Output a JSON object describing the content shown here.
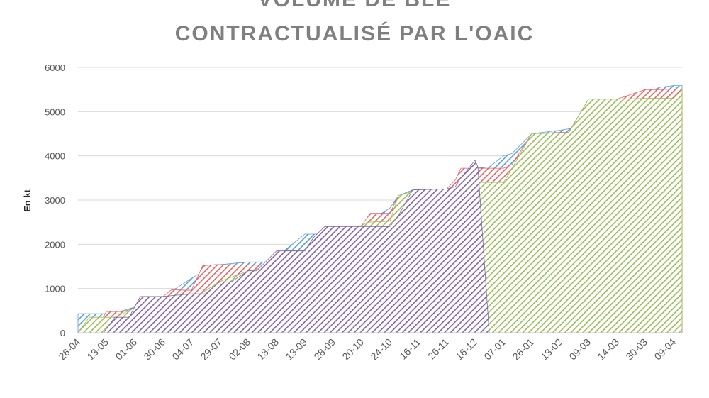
{
  "chart_data": {
    "type": "area",
    "title_line1": "VOLUME DE BLÉ",
    "title_line2": "CONTRACTUALISÉ PAR L'OAIC",
    "ylabel": "En kt",
    "ylim": [
      0,
      6000
    ],
    "yticks": [
      0,
      1000,
      2000,
      3000,
      4000,
      5000,
      6000
    ],
    "grid": true,
    "x_categories": [
      "26-04",
      "13-05",
      "01-06",
      "30-06",
      "04-07",
      "29-07",
      "02-08",
      "18-08",
      "13-09",
      "28-09",
      "20-10",
      "24-10",
      "16-11",
      "26-11",
      "16-12",
      "07-01",
      "26-01",
      "13-02",
      "09-03",
      "14-03",
      "30-03",
      "09-04"
    ],
    "series": [
      {
        "color": "#5b9bd5",
        "points": [
          [
            0,
            430
          ],
          [
            1,
            430
          ],
          [
            1.6,
            500
          ],
          [
            2,
            580
          ],
          [
            2.2,
            820
          ],
          [
            3,
            820
          ],
          [
            3.4,
            980
          ],
          [
            4,
            1230
          ],
          [
            4.8,
            1540
          ],
          [
            5,
            1540
          ],
          [
            6,
            1600
          ],
          [
            7,
            1600
          ],
          [
            7.3,
            1870
          ],
          [
            8,
            2230
          ],
          [
            8.5,
            2230
          ],
          [
            8.9,
            2400
          ],
          [
            10,
            2420
          ],
          [
            11,
            2820
          ],
          [
            11.3,
            3100
          ],
          [
            11.8,
            3230
          ],
          [
            13,
            3250
          ],
          [
            13.3,
            3430
          ],
          [
            13.5,
            3550
          ],
          [
            14,
            3720
          ],
          [
            14.5,
            3750
          ],
          [
            15,
            4000
          ],
          [
            15.3,
            4050
          ],
          [
            16,
            4500
          ],
          [
            17,
            4580
          ],
          [
            17.4,
            4620
          ],
          [
            18,
            5280
          ],
          [
            19,
            5280
          ],
          [
            20,
            5420
          ],
          [
            20.5,
            5550
          ],
          [
            21,
            5590
          ],
          [
            21.3,
            5590
          ]
        ]
      },
      {
        "color": "#e06666",
        "points": [
          [
            0,
            0
          ],
          [
            0.6,
            0
          ],
          [
            1,
            480
          ],
          [
            1.6,
            480
          ],
          [
            2,
            560
          ],
          [
            2.2,
            820
          ],
          [
            3,
            820
          ],
          [
            3.3,
            970
          ],
          [
            4,
            960
          ],
          [
            4.4,
            1520
          ],
          [
            5,
            1540
          ],
          [
            6,
            1530
          ],
          [
            7,
            1520
          ],
          [
            7.3,
            1850
          ],
          [
            8,
            1850
          ],
          [
            8.3,
            2150
          ],
          [
            8.9,
            2400
          ],
          [
            10,
            2420
          ],
          [
            10.3,
            2700
          ],
          [
            11,
            2700
          ],
          [
            11.3,
            3100
          ],
          [
            12,
            3240
          ],
          [
            13,
            3250
          ],
          [
            13.3,
            3450
          ],
          [
            13.5,
            3720
          ],
          [
            14,
            3720
          ],
          [
            15,
            3720
          ],
          [
            15.3,
            3800
          ],
          [
            16,
            4500
          ],
          [
            17,
            4530
          ],
          [
            17.3,
            4530
          ],
          [
            18,
            5280
          ],
          [
            19,
            5280
          ],
          [
            20,
            5500
          ],
          [
            20.5,
            5500
          ],
          [
            21,
            5510
          ],
          [
            21.3,
            5510
          ]
        ]
      },
      {
        "color": "#9bbb59",
        "points": [
          [
            0,
            0
          ],
          [
            0.4,
            350
          ],
          [
            1,
            350
          ],
          [
            1.3,
            350
          ],
          [
            2,
            560
          ],
          [
            2.2,
            820
          ],
          [
            3,
            820
          ],
          [
            4,
            870
          ],
          [
            4.3,
            870
          ],
          [
            5,
            1160
          ],
          [
            6,
            1400
          ],
          [
            7,
            1530
          ],
          [
            7.3,
            1850
          ],
          [
            8,
            1850
          ],
          [
            8.3,
            2150
          ],
          [
            8.9,
            2400
          ],
          [
            10,
            2420
          ],
          [
            10.2,
            2500
          ],
          [
            11,
            2520
          ],
          [
            11.3,
            3100
          ],
          [
            12,
            3240
          ],
          [
            13,
            3250
          ],
          [
            13.3,
            3300
          ],
          [
            14,
            3300
          ],
          [
            14.2,
            3400
          ],
          [
            15,
            3400
          ],
          [
            15.2,
            3600
          ],
          [
            16,
            4500
          ],
          [
            17,
            4520
          ],
          [
            17.3,
            4520
          ],
          [
            18,
            5280
          ],
          [
            19,
            5280
          ],
          [
            20,
            5300
          ],
          [
            21,
            5300
          ],
          [
            21.3,
            5500
          ]
        ]
      },
      {
        "color": "#8064a2",
        "points": [
          [
            0.9,
            0
          ],
          [
            1.3,
            350
          ],
          [
            1.8,
            350
          ],
          [
            2.2,
            820
          ],
          [
            3,
            820
          ],
          [
            4,
            880
          ],
          [
            4.5,
            880
          ],
          [
            5,
            1150
          ],
          [
            5.4,
            1150
          ],
          [
            6,
            1400
          ],
          [
            6.3,
            1400
          ],
          [
            7,
            1850
          ],
          [
            8,
            1850
          ],
          [
            8.3,
            2150
          ],
          [
            8.7,
            2400
          ],
          [
            9.5,
            2400
          ],
          [
            10,
            2400
          ],
          [
            11,
            2400
          ],
          [
            11.3,
            2650
          ],
          [
            11.8,
            3230
          ],
          [
            13,
            3250
          ],
          [
            13.3,
            3300
          ],
          [
            13.5,
            3500
          ],
          [
            14,
            3900
          ],
          [
            14.1,
            3750
          ],
          [
            14.5,
            0
          ]
        ]
      }
    ]
  }
}
